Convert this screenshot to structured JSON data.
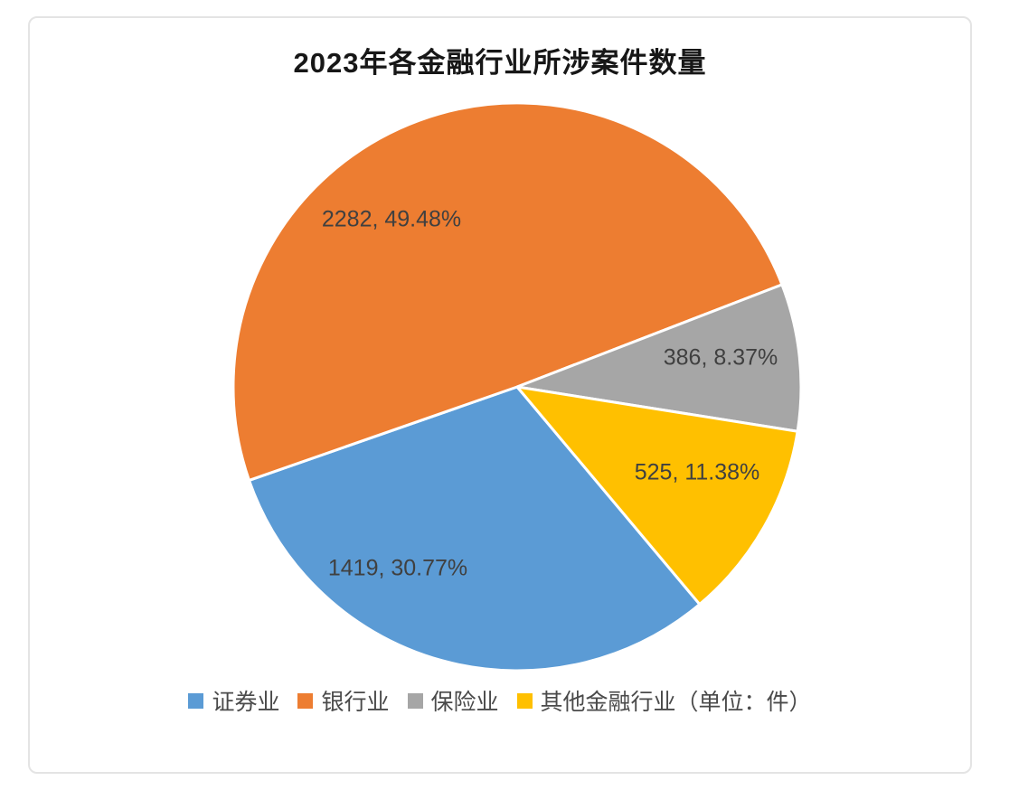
{
  "chart_data": {
    "type": "pie",
    "title": "2023年各金融行业所涉案件数量",
    "legend_position": "bottom",
    "separator_color": "#ffffff",
    "frame_border_color": "#e4e4e4",
    "label_text_color": "#404040",
    "slices": [
      {
        "name": "证券业",
        "value": 1419,
        "percent": "30.77%",
        "data_label": "1419, 30.77%",
        "color": "#5B9BD5"
      },
      {
        "name": "银行业",
        "value": 2282,
        "percent": "49.48%",
        "data_label": "2282, 49.48%",
        "color": "#ED7D31"
      },
      {
        "name": "保险业",
        "value": 386,
        "percent": "8.37%",
        "data_label": "386, 8.37%",
        "color": "#A6A6A6"
      },
      {
        "name": "其他金融行业（单位：件）",
        "value": 525,
        "percent": "11.38%",
        "data_label": "525, 11.38%",
        "color": "#FFC000"
      }
    ]
  }
}
